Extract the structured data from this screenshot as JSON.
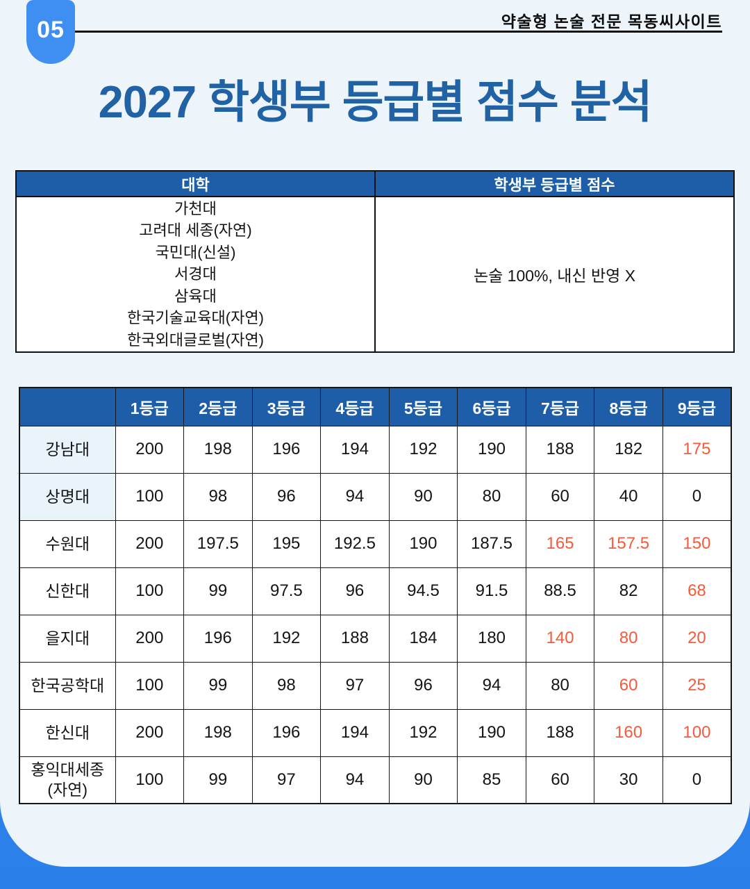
{
  "page": {
    "badge": "05",
    "brand": "약술형 논술 전문 목동씨사이트",
    "title": "2027 학생부 등급별 점수 분석"
  },
  "colors": {
    "page_background_blue": "#3188ee",
    "card_background": "#edf5fa",
    "badge_blue": "#3e8ff1",
    "table_header_blue": "#1e5ea8",
    "title_blue": "#2162a5",
    "highlight_orange": "#f65a3a",
    "name_cell_tint": "#e8f3fa"
  },
  "summary_table": {
    "headers": [
      "대학",
      "학생부 등급별 점수"
    ],
    "universities": [
      "가천대",
      "고려대 세종(자연)",
      "국민대(신설)",
      "서경대",
      "삼육대",
      "한국기술교육대(자연)",
      "한국외대글로벌(자연)"
    ],
    "note": "논술 100%, 내신 반영 X"
  },
  "score_table": {
    "corner_label": "",
    "grade_headers": [
      "1등급",
      "2등급",
      "3등급",
      "4등급",
      "5등급",
      "6등급",
      "7등급",
      "8등급",
      "9등급"
    ],
    "rows": [
      {
        "name": "강남대",
        "tint": true,
        "values": [
          "200",
          "198",
          "196",
          "194",
          "192",
          "190",
          "188",
          "182",
          "175"
        ],
        "red_indices": [
          8
        ]
      },
      {
        "name": "상명대",
        "tint": true,
        "values": [
          "100",
          "98",
          "96",
          "94",
          "90",
          "80",
          "60",
          "40",
          "0"
        ],
        "red_indices": []
      },
      {
        "name": "수원대",
        "tint": false,
        "values": [
          "200",
          "197.5",
          "195",
          "192.5",
          "190",
          "187.5",
          "165",
          "157.5",
          "150"
        ],
        "red_indices": [
          6,
          7,
          8
        ]
      },
      {
        "name": "신한대",
        "tint": false,
        "values": [
          "100",
          "99",
          "97.5",
          "96",
          "94.5",
          "91.5",
          "88.5",
          "82",
          "68"
        ],
        "red_indices": [
          8
        ]
      },
      {
        "name": "을지대",
        "tint": false,
        "values": [
          "200",
          "196",
          "192",
          "188",
          "184",
          "180",
          "140",
          "80",
          "20"
        ],
        "red_indices": [
          6,
          7,
          8
        ]
      },
      {
        "name": "한국공학대",
        "tint": false,
        "values": [
          "100",
          "99",
          "98",
          "97",
          "96",
          "94",
          "80",
          "60",
          "25"
        ],
        "red_indices": [
          7,
          8
        ]
      },
      {
        "name": "한신대",
        "tint": false,
        "values": [
          "200",
          "198",
          "196",
          "194",
          "192",
          "190",
          "188",
          "160",
          "100"
        ],
        "red_indices": [
          7,
          8
        ]
      },
      {
        "name": "홍익대세종\n(자연)",
        "tint": false,
        "values": [
          "100",
          "99",
          "97",
          "94",
          "90",
          "85",
          "60",
          "30",
          "0"
        ],
        "red_indices": []
      }
    ]
  }
}
